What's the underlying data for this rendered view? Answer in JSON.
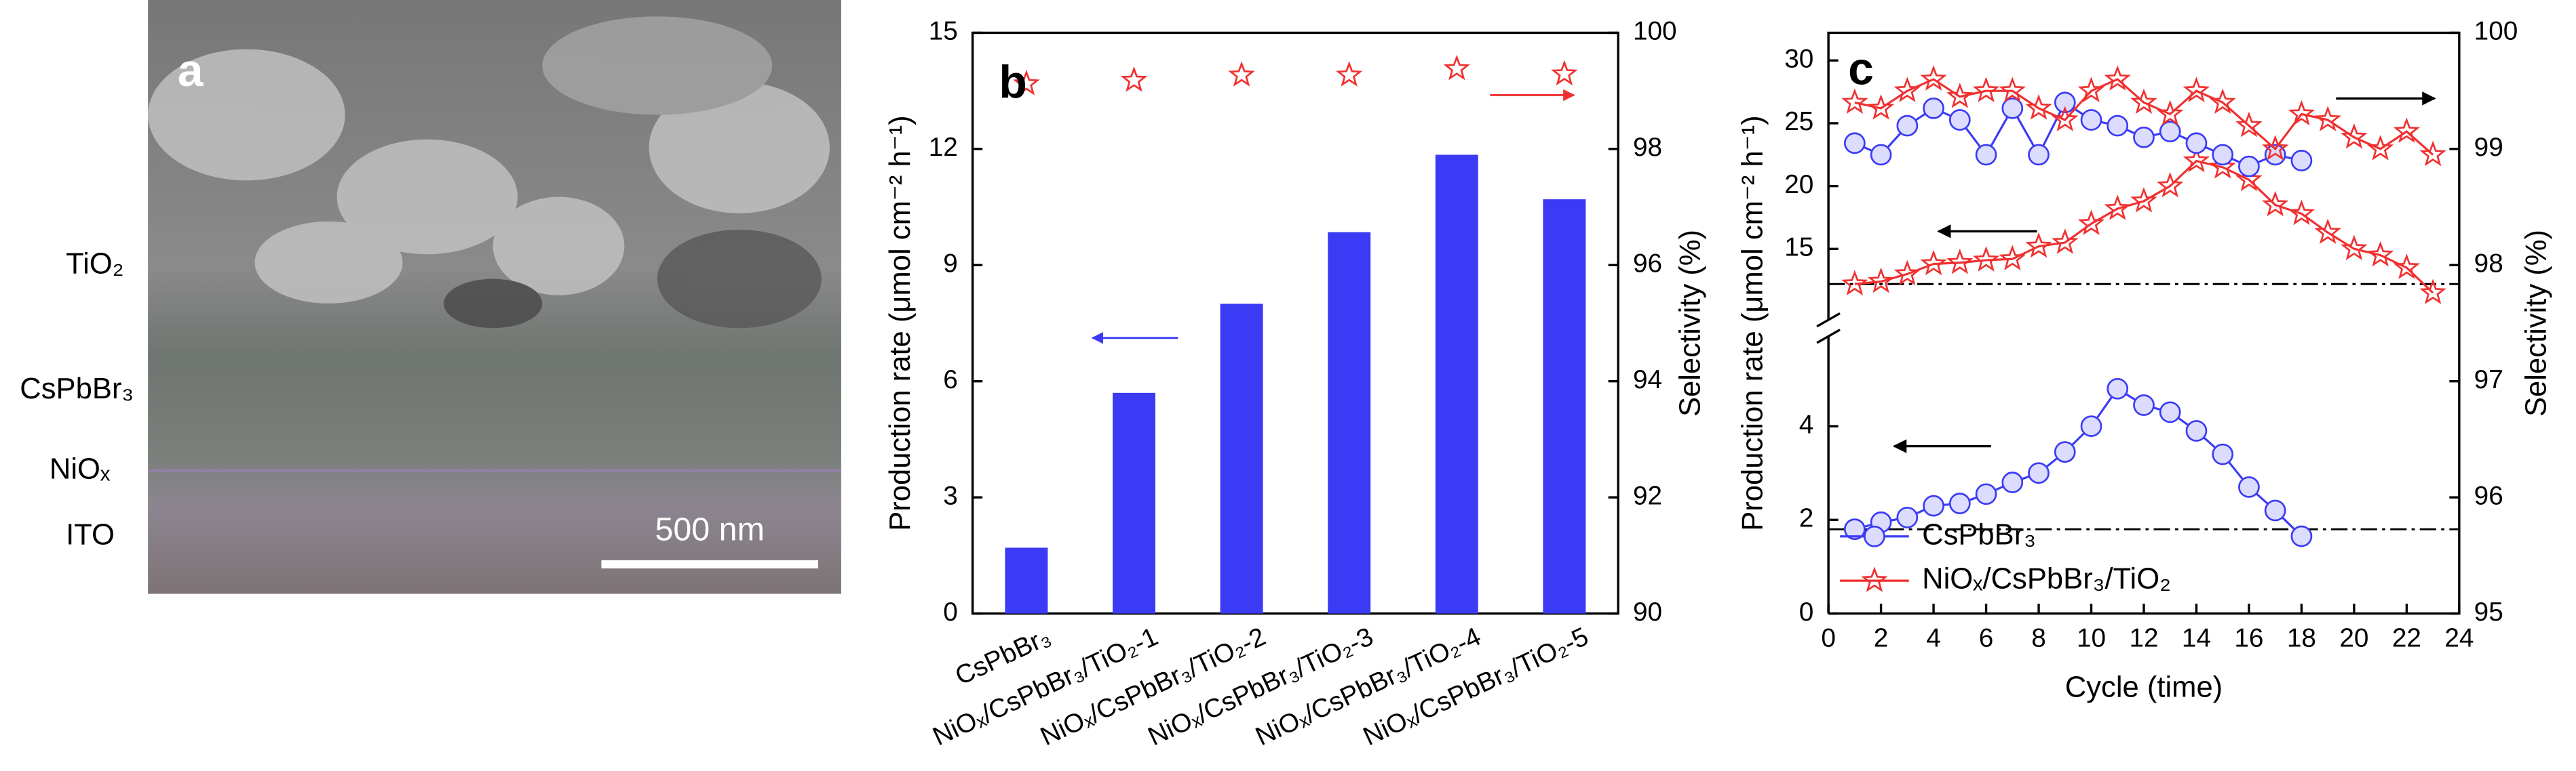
{
  "image_panel": {
    "label": "a",
    "layers": [
      "TiO₂",
      "CsPbBr₃",
      "NiOₓ",
      "ITO"
    ],
    "scale_bar": "500 nm"
  },
  "chart_data": [
    {
      "type": "bar",
      "label": "b",
      "categories": [
        "CsPbBr₃",
        "NiOₓ/CsPbBr₃/TiO₂-1",
        "NiOₓ/CsPbBr₃/TiO₂-2",
        "NiOₓ/CsPbBr₃/TiO₂-3",
        "NiOₓ/CsPbBr₃/TiO₂-4",
        "NiOₓ/CsPbBr₃/TiO₂-5"
      ],
      "ylabel": "Production rate (μmol cm⁻² h⁻¹)",
      "y2label": "Selectivity (%)",
      "ylim": [
        0,
        15
      ],
      "yticks": [
        0,
        3,
        6,
        9,
        12,
        15
      ],
      "y2lim": [
        90,
        100
      ],
      "y2ticks": [
        90,
        92,
        94,
        96,
        98,
        100
      ],
      "series": [
        {
          "color": "#3b3bf5",
          "values": [
            1.7,
            5.7,
            8.0,
            9.85,
            11.85,
            10.7
          ]
        },
        {
          "color": "#f03030",
          "axis": "y2",
          "marker": "star",
          "values": [
            99.12,
            99.18,
            99.27,
            99.27,
            99.38,
            99.29
          ]
        }
      ]
    },
    {
      "type": "line",
      "label": "c",
      "xlabel": "Cycle (time)",
      "ylabel": "Production rate (μmol cm⁻² h⁻¹)",
      "y2label": "Selectivity (%)",
      "xlim": [
        0,
        24
      ],
      "xticks": [
        0,
        2,
        4,
        6,
        8,
        10,
        12,
        14,
        16,
        18,
        20,
        22,
        24
      ],
      "y_segments": [
        {
          "ylim": [
            0,
            5.5
          ],
          "yticks": [
            0,
            2,
            4
          ]
        },
        {
          "ylim": [
            10,
            32.2
          ],
          "yticks": [
            15,
            20,
            25,
            30
          ]
        }
      ],
      "y2lim": [
        95,
        100
      ],
      "y2ticks": [
        95,
        96,
        97,
        98,
        99,
        100
      ],
      "hlines": [
        {
          "segment": 1,
          "value": 12.2
        },
        {
          "segment": 0,
          "value": 1.8
        }
      ],
      "series": [
        {
          "name": "CsPbBr₃",
          "color": "#3b3bf5",
          "marker": "circle",
          "segment": 0,
          "x": [
            1,
            2,
            3,
            4,
            5,
            6,
            7,
            8,
            9,
            10,
            11,
            12,
            13,
            14,
            15,
            16,
            17,
            18
          ],
          "values": [
            1.8,
            1.95,
            2.05,
            2.3,
            2.35,
            2.55,
            2.8,
            3.0,
            3.45,
            4.0,
            4.8,
            4.45,
            4.3,
            3.9,
            3.4,
            2.7,
            2.2,
            1.65
          ]
        },
        {
          "name": "NiOₓ/CsPbBr₃/TiO₂",
          "color": "#f03030",
          "marker": "star",
          "segment": 1,
          "x": [
            1,
            2,
            3,
            4,
            5,
            6,
            7,
            8,
            9,
            10,
            11,
            12,
            13,
            14,
            15,
            16,
            17,
            18,
            19,
            20,
            21,
            22,
            23
          ],
          "values": [
            12.2,
            12.4,
            13.0,
            13.8,
            13.9,
            14.1,
            14.2,
            15.2,
            15.5,
            17.0,
            18.2,
            18.8,
            20.0,
            22.0,
            21.5,
            20.5,
            18.5,
            17.8,
            16.3,
            15.0,
            14.5,
            13.5,
            11.5
          ]
        },
        {
          "name": "CsPbBr₃",
          "color": "#3b3bf5",
          "marker": "circle",
          "axis": "y2",
          "x": [
            1,
            2,
            3,
            4,
            5,
            6,
            7,
            8,
            9,
            10,
            11,
            12,
            13,
            14,
            15,
            16,
            17,
            18
          ],
          "values": [
            99.05,
            98.95,
            99.2,
            99.35,
            99.25,
            98.95,
            99.35,
            98.95,
            99.4,
            99.25,
            99.2,
            99.1,
            99.15,
            99.05,
            98.95,
            98.85,
            98.95,
            98.9
          ]
        },
        {
          "name": "NiOₓ/CsPbBr₃/TiO₂",
          "color": "#f03030",
          "marker": "star",
          "axis": "y2",
          "x": [
            1,
            2,
            3,
            4,
            5,
            6,
            7,
            8,
            9,
            10,
            11,
            12,
            13,
            14,
            15,
            16,
            17,
            18,
            19,
            20,
            21,
            22,
            23
          ],
          "values": [
            99.4,
            99.35,
            99.5,
            99.6,
            99.45,
            99.5,
            99.5,
            99.35,
            99.25,
            99.5,
            99.6,
            99.4,
            99.3,
            99.5,
            99.4,
            99.2,
            99.0,
            99.3,
            99.25,
            99.1,
            99.0,
            99.15,
            98.95
          ]
        }
      ]
    }
  ]
}
